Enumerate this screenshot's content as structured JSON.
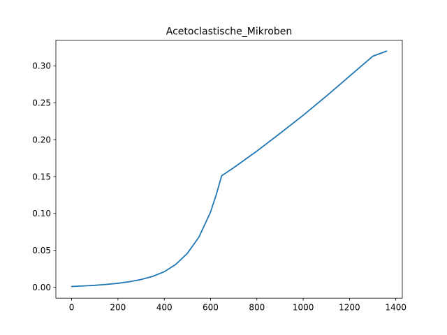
{
  "chart_data": {
    "type": "line",
    "title": "Acetoclastische_Mikroben",
    "xlabel": "",
    "ylabel": "",
    "xlim": [
      -68,
      1428
    ],
    "ylim": [
      -0.0148,
      0.3348
    ],
    "x_ticks": [
      0,
      200,
      400,
      600,
      800,
      1000,
      1200,
      1400
    ],
    "x_tick_labels": [
      "0",
      "200",
      "400",
      "600",
      "800",
      "1000",
      "1200",
      "1400"
    ],
    "y_ticks": [
      0.0,
      0.05,
      0.1,
      0.15,
      0.2,
      0.25,
      0.3
    ],
    "y_tick_labels": [
      "0.00",
      "0.05",
      "0.10",
      "0.15",
      "0.20",
      "0.25",
      "0.30"
    ],
    "grid": false,
    "line_color": "#1f77b4",
    "series": [
      {
        "x": [
          0,
          50,
          100,
          150,
          200,
          250,
          300,
          350,
          400,
          450,
          500,
          550,
          600,
          625,
          648,
          700,
          800,
          900,
          1000,
          1100,
          1200,
          1300,
          1360
        ],
        "y": [
          0.001,
          0.0017,
          0.0026,
          0.0038,
          0.0053,
          0.0075,
          0.0105,
          0.0147,
          0.021,
          0.031,
          0.046,
          0.068,
          0.102,
          0.126,
          0.151,
          0.162,
          0.1845,
          0.2085,
          0.233,
          0.259,
          0.286,
          0.313,
          0.32
        ]
      }
    ]
  }
}
